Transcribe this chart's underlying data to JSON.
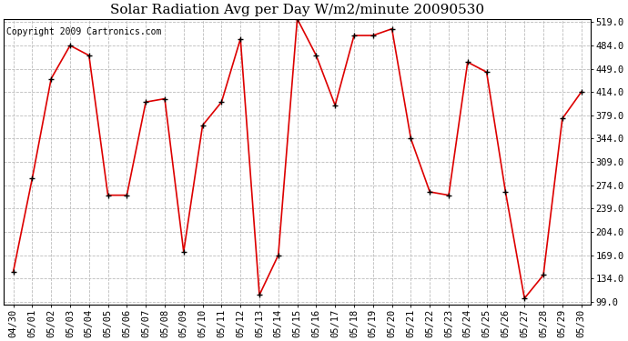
{
  "title": "Solar Radiation Avg per Day W/m2/minute 20090530",
  "copyright": "Copyright 2009 Cartronics.com",
  "labels": [
    "04/30",
    "05/01",
    "05/02",
    "05/03",
    "05/04",
    "05/05",
    "05/06",
    "05/07",
    "05/08",
    "05/09",
    "05/10",
    "05/11",
    "05/12",
    "05/13",
    "05/14",
    "05/15",
    "05/16",
    "05/17",
    "05/18",
    "05/19",
    "05/20",
    "05/21",
    "05/22",
    "05/23",
    "05/24",
    "05/25",
    "05/26",
    "05/27",
    "05/28",
    "05/29",
    "05/30"
  ],
  "values": [
    144,
    284,
    434,
    484,
    469,
    259,
    259,
    399,
    404,
    174,
    364,
    399,
    494,
    109,
    169,
    524,
    469,
    394,
    499,
    499,
    509,
    344,
    264,
    259,
    459,
    444,
    264,
    104,
    139,
    374,
    414
  ],
  "line_color": "#dd0000",
  "marker_color": "#000000",
  "bg_color": "#ffffff",
  "plot_bg_color": "#ffffff",
  "grid_color": "#bbbbbb",
  "yticks": [
    99.0,
    134.0,
    169.0,
    204.0,
    239.0,
    274.0,
    309.0,
    344.0,
    379.0,
    414.0,
    449.0,
    484.0,
    519.0
  ],
  "ymin": 99.0,
  "ymax": 519.0,
  "title_fontsize": 11,
  "copyright_fontsize": 7,
  "tick_labelsize": 7.5
}
